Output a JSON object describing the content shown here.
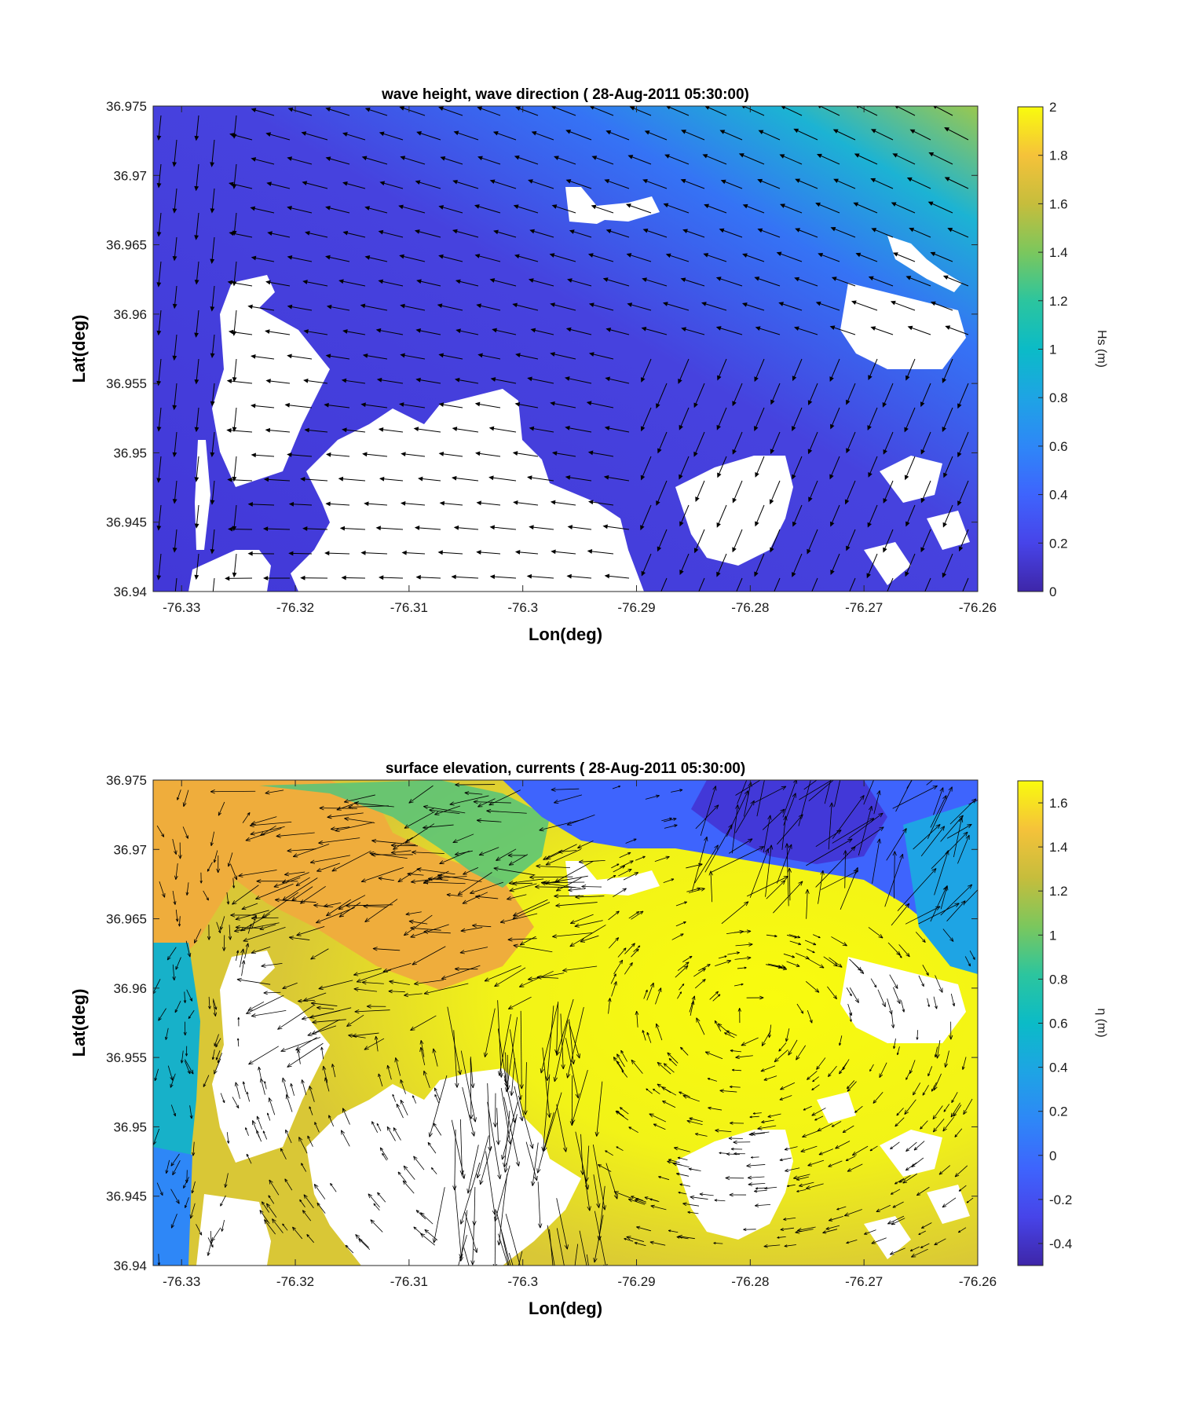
{
  "chart_data": [
    {
      "type": "heatmap",
      "title": "wave height, wave direction ( 28-Aug-2011 05:30:00)",
      "xlabel": "Lon(deg)",
      "ylabel": "Lat(deg)",
      "xlim": [
        -76.3325,
        -76.26
      ],
      "ylim": [
        36.94,
        36.975
      ],
      "xticks": [
        "-76.33",
        "-76.32",
        "-76.31",
        "-76.3",
        "-76.29",
        "-76.28",
        "-76.27",
        "-76.26"
      ],
      "xtick_values": [
        -76.33,
        -76.32,
        -76.31,
        -76.3,
        -76.29,
        -76.28,
        -76.27,
        -76.26
      ],
      "yticks": [
        "36.94",
        "36.945",
        "36.95",
        "36.955",
        "36.96",
        "36.965",
        "36.97",
        "36.975"
      ],
      "ytick_values": [
        36.94,
        36.945,
        36.95,
        36.955,
        36.96,
        36.965,
        36.97,
        36.975
      ],
      "colorbar": {
        "label": "Hs (m)",
        "range": [
          0,
          2
        ],
        "ticks": [
          "0",
          "0.2",
          "0.4",
          "0.6",
          "0.8",
          "1",
          "1.2",
          "1.4",
          "1.6",
          "1.8",
          "2"
        ],
        "tick_values": [
          0,
          0.2,
          0.4,
          0.6,
          0.8,
          1,
          1.2,
          1.4,
          1.6,
          1.8,
          2
        ],
        "colormap": "parula"
      },
      "overlay": "quiver (wave direction)"
    },
    {
      "type": "heatmap",
      "title": "surface elevation, currents ( 28-Aug-2011 05:30:00)",
      "xlabel": "Lon(deg)",
      "ylabel": "Lat(deg)",
      "xlim": [
        -76.3325,
        -76.26
      ],
      "ylim": [
        36.94,
        36.975
      ],
      "xticks": [
        "-76.33",
        "-76.32",
        "-76.31",
        "-76.3",
        "-76.29",
        "-76.28",
        "-76.27",
        "-76.26"
      ],
      "xtick_values": [
        -76.33,
        -76.32,
        -76.31,
        -76.3,
        -76.29,
        -76.28,
        -76.27,
        -76.26
      ],
      "yticks": [
        "36.94",
        "36.945",
        "36.95",
        "36.955",
        "36.96",
        "36.965",
        "36.97",
        "36.975"
      ],
      "ytick_values": [
        36.94,
        36.945,
        36.95,
        36.955,
        36.96,
        36.965,
        36.97,
        36.975
      ],
      "colorbar": {
        "label": "η (m)",
        "range": [
          -0.5,
          1.7
        ],
        "ticks": [
          "-0.4",
          "-0.2",
          "0",
          "0.2",
          "0.4",
          "0.6",
          "0.8",
          "1",
          "1.2",
          "1.4",
          "1.6"
        ],
        "tick_values": [
          -0.4,
          -0.2,
          0,
          0.2,
          0.4,
          0.6,
          0.8,
          1,
          1.2,
          1.4,
          1.6
        ],
        "colormap": "parula"
      },
      "overlay": "quiver (currents)"
    }
  ]
}
